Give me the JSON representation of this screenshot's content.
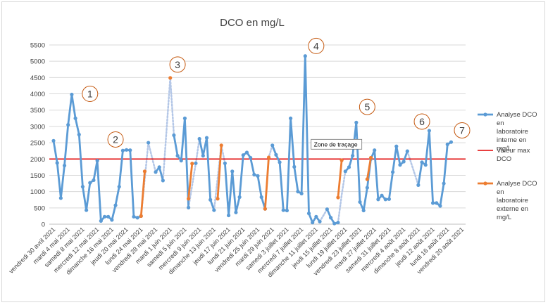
{
  "chart_data": {
    "type": "line",
    "title": "DCO en mg/L",
    "xlabel": "",
    "ylabel": "",
    "ylim": [
      0,
      5500
    ],
    "yticks": [
      0,
      500,
      1000,
      1500,
      2000,
      2500,
      3000,
      3500,
      4000,
      4500,
      5000,
      5500
    ],
    "grid": true,
    "legend_position": "right",
    "x_tick_labels": [
      "vendredi 30 avril 2021",
      "mardi 4 mai 2021",
      "samedi 8 mai 2021",
      "mercredi 12 mai 2021",
      "dimanche 16 mai 2021",
      "jeudi 20 mai 2021",
      "lundi 24 mai 2021",
      "vendredi 28 mai 2021",
      "mardi 1 juin 2021",
      "samedi 5 juin 2021",
      "mercredi 9 juin 2021",
      "dimanche 13 juin 2021",
      "jeudi 17 juin 2021",
      "lundi 21 juin 2021",
      "vendredi 25 juin 2021",
      "mardi 29 juin 2021",
      "samedi 3 juillet 2021",
      "mercredi 7 juillet 2021",
      "dimanche 11 juillet 2021",
      "jeudi 15 juillet 2021",
      "lundi 19 juillet 2021",
      "vendredi 23 juillet 2021",
      "mardi 27 juillet 2021",
      "samedi 31 juillet 2021",
      "mercredi 4 août 2021",
      "dimanche 8 août 2021",
      "jeudi 12 août 2021",
      "lundi 16 août 2021",
      "vendredi 20 août 2021"
    ],
    "x_start_date": "2021-04-30",
    "x_end_date": "2021-08-20",
    "series": [
      {
        "name": "Analyse DCO en laboratoire interne en mg/L",
        "color": "#5b9bd5",
        "marker": "circle",
        "segments": [
          [
            [
              "2021-04-30",
              2560
            ],
            [
              "2021-05-01",
              1880
            ],
            [
              "2021-05-02",
              800
            ],
            [
              "2021-05-03",
              1800
            ],
            [
              "2021-05-04",
              3050
            ],
            [
              "2021-05-05",
              3980
            ],
            [
              "2021-05-06",
              3250
            ],
            [
              "2021-05-07",
              2750
            ],
            [
              "2021-05-08",
              1150
            ],
            [
              "2021-05-09",
              430
            ],
            [
              "2021-05-10",
              1270
            ],
            [
              "2021-05-11",
              1350
            ],
            [
              "2021-05-12",
              1950
            ],
            [
              "2021-05-13",
              100
            ],
            [
              "2021-05-14",
              230
            ],
            [
              "2021-05-15",
              230
            ],
            [
              "2021-05-16",
              130
            ],
            [
              "2021-05-17",
              580
            ],
            [
              "2021-05-18",
              1150
            ],
            [
              "2021-05-19",
              2260
            ],
            [
              "2021-05-20",
              2280
            ],
            [
              "2021-05-21",
              2270
            ],
            [
              "2021-05-22",
              230
            ],
            [
              "2021-05-23",
              200
            ],
            [
              "2021-05-24",
              250
            ]
          ],
          [
            [
              "2021-05-26",
              2500
            ]
          ],
          [
            [
              "2021-05-28",
              1600
            ],
            [
              "2021-05-29",
              1750
            ],
            [
              "2021-05-30",
              1340
            ]
          ],
          [
            [
              "2021-06-02",
              2730
            ],
            [
              "2021-06-03",
              2100
            ],
            [
              "2021-06-04",
              1950
            ],
            [
              "2021-06-05",
              3250
            ],
            [
              "2021-06-06",
              510
            ]
          ],
          [
            [
              "2021-06-08",
              1870
            ]
          ],
          [
            [
              "2021-06-09",
              2620
            ],
            [
              "2021-06-10",
              2100
            ],
            [
              "2021-06-11",
              2650
            ],
            [
              "2021-06-12",
              750
            ],
            [
              "2021-06-13",
              430
            ]
          ],
          [
            [
              "2021-06-16",
              1870
            ],
            [
              "2021-06-17",
              270
            ],
            [
              "2021-06-18",
              1620
            ],
            [
              "2021-06-19",
              360
            ],
            [
              "2021-06-20",
              830
            ],
            [
              "2021-06-21",
              2120
            ],
            [
              "2021-06-22",
              2200
            ],
            [
              "2021-06-23",
              2040
            ],
            [
              "2021-06-24",
              1520
            ],
            [
              "2021-06-25",
              1480
            ],
            [
              "2021-06-26",
              830
            ],
            [
              "2021-06-27",
              470
            ]
          ],
          [
            [
              "2021-06-29",
              2420
            ],
            [
              "2021-06-30",
              2130
            ],
            [
              "2021-07-01",
              1900
            ],
            [
              "2021-07-02",
              430
            ],
            [
              "2021-07-03",
              420
            ],
            [
              "2021-07-04",
              3250
            ],
            [
              "2021-07-05",
              1760
            ],
            [
              "2021-07-06",
              1000
            ],
            [
              "2021-07-07",
              940
            ],
            [
              "2021-07-08",
              5160
            ],
            [
              "2021-07-09",
              330
            ],
            [
              "2021-07-10",
              50
            ],
            [
              "2021-07-11",
              230
            ],
            [
              "2021-07-12",
              80
            ]
          ],
          [
            [
              "2021-07-14",
              460
            ],
            [
              "2021-07-15",
              200
            ],
            [
              "2021-07-16",
              20
            ],
            [
              "2021-07-17",
              50
            ]
          ],
          [
            [
              "2021-07-19",
              1620
            ],
            [
              "2021-07-20",
              1750
            ],
            [
              "2021-07-21",
              2100
            ],
            [
              "2021-07-22",
              3120
            ],
            [
              "2021-07-23",
              680
            ],
            [
              "2021-07-24",
              420
            ],
            [
              "2021-07-25",
              1120
            ],
            [
              "2021-07-26",
              2000
            ],
            [
              "2021-07-27",
              2270
            ],
            [
              "2021-07-28",
              760
            ],
            [
              "2021-07-29",
              880
            ],
            [
              "2021-07-30",
              760
            ],
            [
              "2021-07-31",
              770
            ],
            [
              "2021-08-01",
              1600
            ],
            [
              "2021-08-02",
              2390
            ],
            [
              "2021-08-03",
              1820
            ],
            [
              "2021-08-04",
              1920
            ],
            [
              "2021-08-05",
              2240
            ]
          ],
          [
            [
              "2021-08-08",
              1200
            ],
            [
              "2021-08-09",
              1900
            ],
            [
              "2021-08-10",
              1820
            ],
            [
              "2021-08-11",
              2870
            ],
            [
              "2021-08-12",
              650
            ],
            [
              "2021-08-13",
              650
            ],
            [
              "2021-08-14",
              560
            ],
            [
              "2021-08-15",
              1250
            ],
            [
              "2021-08-16",
              2450
            ],
            [
              "2021-08-17",
              2520
            ]
          ]
        ],
        "gap_connectors": [
          [
            [
              "2021-05-24",
              250
            ],
            [
              "2021-05-26",
              2500
            ]
          ],
          [
            [
              "2021-05-26",
              2500
            ],
            [
              "2021-05-28",
              1600
            ]
          ],
          [
            [
              "2021-05-30",
              1340
            ],
            [
              "2021-06-01",
              4490
            ],
            [
              "2021-06-02",
              2730
            ]
          ],
          [
            [
              "2021-06-06",
              510
            ],
            [
              "2021-06-08",
              1870
            ]
          ],
          [
            [
              "2021-06-08",
              1870
            ],
            [
              "2021-06-09",
              2620
            ]
          ],
          [
            [
              "2021-06-13",
              430
            ],
            [
              "2021-06-15",
              2420
            ],
            [
              "2021-06-16",
              1870
            ]
          ],
          [
            [
              "2021-06-27",
              470
            ],
            [
              "2021-06-28",
              2050
            ],
            [
              "2021-06-29",
              2420
            ]
          ],
          [
            [
              "2021-07-12",
              80
            ],
            [
              "2021-07-14",
              460
            ]
          ],
          [
            [
              "2021-07-17",
              50
            ],
            [
              "2021-07-18",
              900
            ],
            [
              "2021-07-19",
              1620
            ]
          ],
          [
            [
              "2021-08-05",
              2240
            ],
            [
              "2021-08-08",
              1200
            ]
          ]
        ]
      },
      {
        "name": "Valeur max DCO",
        "color": "#e00000",
        "value": 2000
      },
      {
        "name": "Analyse DCO en laboratoire externe en mg/L",
        "color": "#ed7d31",
        "marker": "circle",
        "segments": [
          [
            [
              "2021-05-24",
              250
            ],
            [
              "2021-05-25",
              1620
            ]
          ],
          [
            [
              "2021-06-01",
              4490
            ]
          ],
          [
            [
              "2021-06-06",
              780
            ],
            [
              "2021-06-07",
              1860
            ]
          ],
          [
            [
              "2021-06-14",
              780
            ],
            [
              "2021-06-15",
              2420
            ]
          ],
          [
            [
              "2021-06-27",
              470
            ],
            [
              "2021-06-28",
              2050
            ]
          ],
          [
            [
              "2021-07-17",
              820
            ],
            [
              "2021-07-18",
              1960
            ]
          ],
          [
            [
              "2021-07-25",
              1380
            ],
            [
              "2021-07-26",
              2040
            ]
          ]
        ]
      }
    ],
    "annotations": [
      {
        "label": "1",
        "date": "2021-05-10",
        "value": 4000
      },
      {
        "label": "2",
        "date": "2021-05-17",
        "value": 2600
      },
      {
        "label": "3",
        "date": "2021-06-03",
        "value": 4900
      },
      {
        "label": "4",
        "date": "2021-07-11",
        "value": 5470
      },
      {
        "label": "5",
        "date": "2021-07-25",
        "value": 3600
      },
      {
        "label": "6",
        "date": "2021-08-09",
        "value": 3150
      },
      {
        "label": "7",
        "date": "2021-08-20",
        "value": 2880
      }
    ],
    "tooltip": {
      "text": "Zone de traçage",
      "date": "2021-07-10",
      "value": 2560
    }
  }
}
